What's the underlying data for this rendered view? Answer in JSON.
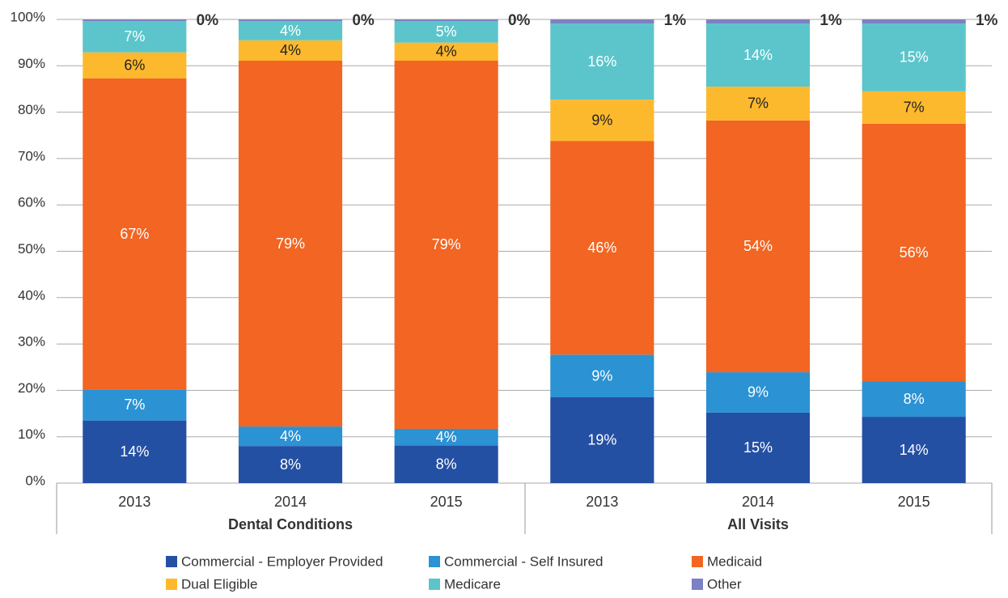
{
  "chart_data": {
    "type": "stacked_bar",
    "categories": [
      "2013",
      "2014",
      "2015",
      "2013",
      "2014",
      "2015"
    ],
    "group_labels": [
      "Dental Conditions",
      "All Visits"
    ],
    "ylim": [
      0,
      100
    ],
    "yticks": [
      {
        "value": 0,
        "label": "0%"
      },
      {
        "value": 10,
        "label": "10%"
      },
      {
        "value": 20,
        "label": "20%"
      },
      {
        "value": 30,
        "label": "30%"
      },
      {
        "value": 40,
        "label": "40%"
      },
      {
        "value": 50,
        "label": "50%"
      },
      {
        "value": 60,
        "label": "60%"
      },
      {
        "value": 70,
        "label": "70%"
      },
      {
        "value": 80,
        "label": "80%"
      },
      {
        "value": 90,
        "label": "90%"
      },
      {
        "value": 100,
        "label": "100%"
      }
    ],
    "grid": true,
    "legend": "bottom",
    "series": [
      {
        "name": "Commercial - Employer Provided",
        "color": "#2450a4",
        "label_color": "#ffffff",
        "values": [
          13.5,
          8.0,
          8.1,
          18.5,
          15.2,
          14.3
        ],
        "value_labels": [
          "14%",
          "8%",
          "8%",
          "19%",
          "15%",
          "14%"
        ]
      },
      {
        "name": "Commercial - Self Insured",
        "color": "#2b92d3",
        "label_color": "#ffffff",
        "values": [
          6.7,
          4.2,
          3.6,
          9.2,
          8.7,
          7.6
        ],
        "value_labels": [
          "7%",
          "4%",
          "4%",
          "9%",
          "9%",
          "8%"
        ]
      },
      {
        "name": "Medicaid",
        "color": "#f26522",
        "label_color": "#ffffff",
        "values": [
          67.1,
          78.9,
          79.4,
          46.1,
          54.3,
          55.6
        ],
        "value_labels": [
          "67%",
          "79%",
          "79%",
          "46%",
          "54%",
          "56%"
        ]
      },
      {
        "name": "Dual Eligible",
        "color": "#fdb92d",
        "label_color": "#222222",
        "values": [
          5.6,
          4.4,
          3.9,
          8.9,
          7.3,
          7.0
        ],
        "value_labels": [
          "6%",
          "4%",
          "4%",
          "9%",
          "7%",
          "7%"
        ]
      },
      {
        "name": "Medicare",
        "color": "#5bc5cb",
        "label_color": "#ffffff",
        "values": [
          6.7,
          4.1,
          4.6,
          16.4,
          13.6,
          14.6
        ],
        "value_labels": [
          "7%",
          "4%",
          "5%",
          "16%",
          "14%",
          "15%"
        ]
      },
      {
        "name": "Other",
        "color": "#7c80c4",
        "label_color": "#111111",
        "values": [
          0.4,
          0.4,
          0.4,
          0.9,
          0.9,
          0.9
        ],
        "value_labels": [
          "0%",
          "0%",
          "0%",
          "1%",
          "1%",
          "1%"
        ]
      }
    ]
  }
}
